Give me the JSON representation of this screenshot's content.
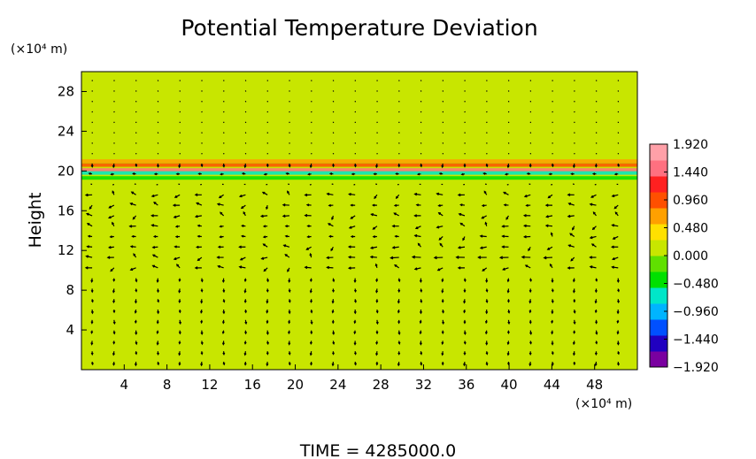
{
  "chart_data": {
    "type": "heatmap",
    "title": "Potential Temperature Deviation",
    "ylabel": "Height",
    "x_unit_label": "(×10⁴ m)",
    "y_unit_label": "(×10⁴ m)",
    "xlim": [
      0,
      52
    ],
    "ylim": [
      0,
      30
    ],
    "x_ticks": [
      4,
      8,
      12,
      16,
      20,
      24,
      28,
      32,
      36,
      40,
      44,
      48
    ],
    "y_ticks": [
      4,
      8,
      12,
      16,
      20,
      24,
      28
    ],
    "colorbar": {
      "range": [
        -1.92,
        1.92
      ],
      "tick_values": [
        1.92,
        1.44,
        0.96,
        0.48,
        0.0,
        -0.48,
        -0.96,
        -1.44,
        -1.92
      ],
      "tick_labels": [
        "1.920",
        "1.440",
        "0.960",
        "0.480",
        "0.000",
        "−0.480",
        "−0.960",
        "−1.440",
        "−1.920"
      ],
      "colors": [
        "#7a00a0",
        "#2000c0",
        "#0050ff",
        "#00b4ff",
        "#00e6c8",
        "#00e000",
        "#60e000",
        "#c8e600",
        "#ffe000",
        "#ffa000",
        "#ff5000",
        "#ff2020",
        "#ff7080",
        "#ffa0a8"
      ]
    },
    "field": {
      "background_value": 0.0,
      "bands": [
        {
          "y": 20.1,
          "value": 1.6
        },
        {
          "y": 19.8,
          "value": -0.6
        },
        {
          "y": 21.0,
          "value": 0.7
        },
        {
          "y": 20.6,
          "value": 0.9
        },
        {
          "y": 19.3,
          "value": -0.3
        }
      ]
    },
    "wind_vectors": {
      "jets": [
        {
          "y": 19.2,
          "x_from": 0,
          "x_to": 52,
          "speed": 3.2
        },
        {
          "y": 17.0,
          "x_from": 20,
          "x_to": 44,
          "speed": 3.0
        },
        {
          "y": 14.0,
          "x_from": 8,
          "x_to": 22,
          "speed": 2.6
        },
        {
          "y": 13.0,
          "x_from": 0,
          "x_to": 30,
          "speed": 2.0
        },
        {
          "y": 11.9,
          "x_from": 0,
          "x_to": 14,
          "speed": 3.6
        },
        {
          "y": 11.0,
          "x_from": 28,
          "x_to": 46,
          "speed": 3.0
        }
      ]
    },
    "footer": "TIME = 4285000.0"
  }
}
